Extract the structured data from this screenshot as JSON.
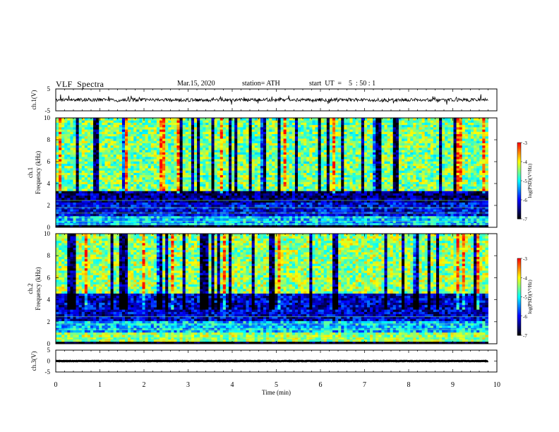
{
  "header": {
    "title": "VLF  Spectra",
    "date": "Mar.15, 2020",
    "station": "station= ATH",
    "start": "start  UT  =    5  : 50 : 1"
  },
  "colors": {
    "background": "#ffffff",
    "axis": "#000000",
    "colormap": [
      "#000000",
      "#00007f",
      "#0000ff",
      "#0080ff",
      "#00ffff",
      "#80ff80",
      "#ffff00",
      "#ff8000",
      "#ff0000",
      "#ffffff"
    ]
  },
  "chart_data": [
    {
      "id": "ch1-waveform",
      "type": "line",
      "ylabel": "ch.1(V)",
      "ylim": [
        -5,
        5
      ],
      "y_ticks": [
        "5",
        "-5"
      ],
      "xlim": [
        0,
        10
      ],
      "trace_length_min": 9.8,
      "baseline_v": 0,
      "amplitude_v": 1.5,
      "color": "#000000"
    },
    {
      "id": "ch1-spectrogram",
      "type": "heatmap",
      "ylabel": "ch.1\nFrequency  (kHz)",
      "ylim": [
        0,
        10
      ],
      "y_ticks": [
        "0",
        "2",
        "4",
        "6",
        "8",
        "10"
      ],
      "xlim": [
        0,
        10
      ],
      "data_end_min": 9.8,
      "colorbar": {
        "label": "log(PSD)(V²/Hz)",
        "range": [
          -7,
          -3
        ],
        "ticks": [
          "-3",
          "-4",
          "-5",
          "-6",
          "-7"
        ]
      },
      "bands_khz": [
        {
          "from": 0,
          "to": 0.25,
          "level": -7
        },
        {
          "from": 0.25,
          "to": 1.0,
          "level": -5.2
        },
        {
          "from": 1.0,
          "to": 2.2,
          "level": -6.1
        },
        {
          "from": 2.2,
          "to": 3.3,
          "level": -6.5
        },
        {
          "from": 3.3,
          "to": 10,
          "level": -4.5
        }
      ]
    },
    {
      "id": "ch2-spectrogram",
      "type": "heatmap",
      "ylabel": "ch.2\nFrequency  (kHz)",
      "ylim": [
        0,
        10
      ],
      "y_ticks": [
        "0",
        "2",
        "4",
        "6",
        "8",
        "10"
      ],
      "xlim": [
        0,
        10
      ],
      "data_end_min": 9.8,
      "colorbar": {
        "label": "log(PSD)(V²/Hz)",
        "range": [
          -7,
          -3
        ],
        "ticks": [
          "-3",
          "-4",
          "-5",
          "-6",
          "-7"
        ]
      },
      "bands_khz": [
        {
          "from": 0,
          "to": 0.25,
          "level": -7
        },
        {
          "from": 0.25,
          "to": 1.0,
          "level": -4.4
        },
        {
          "from": 1.0,
          "to": 2.0,
          "level": -5.2
        },
        {
          "from": 2.0,
          "to": 4.6,
          "level": -6.2
        },
        {
          "from": 4.6,
          "to": 10,
          "level": -4.4
        }
      ]
    },
    {
      "id": "ch3-waveform",
      "type": "line",
      "ylabel": "ch.3(V)",
      "ylim": [
        -5,
        5
      ],
      "y_ticks": [
        "5",
        "0",
        "-5"
      ],
      "xlim": [
        0,
        10
      ],
      "trace_length_min": 9.8,
      "baseline_v": 0,
      "amplitude_v": 0.2,
      "color": "#000000"
    }
  ],
  "x_axis": {
    "label": "Time  (min)",
    "ticks": [
      "0",
      "1",
      "2",
      "3",
      "4",
      "5",
      "6",
      "7",
      "8",
      "9",
      "10"
    ],
    "range": [
      0,
      10
    ]
  }
}
